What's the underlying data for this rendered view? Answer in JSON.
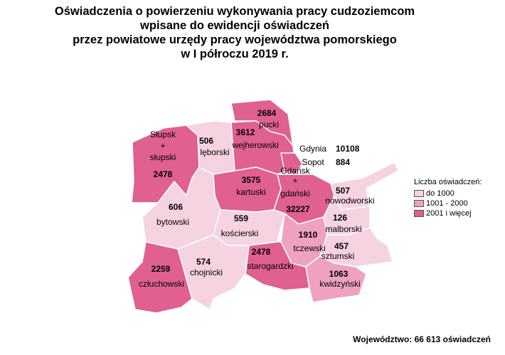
{
  "title_lines": [
    "Oświadczenia o powierzeniu wykonywania pracy cudzoziemcom",
    "wpisane do ewidencji oświadczeń",
    "przez powiatowe urzędy pracy województwa pomorskiego",
    "w I półroczu 2019 r."
  ],
  "colors": {
    "low": "#f5d3e1",
    "mid": "#eea2c0",
    "high": "#e06090",
    "border": "#ffffff",
    "outline": "#aaaaaa"
  },
  "legend": {
    "title": "Liczba oświadczeń:",
    "items": [
      {
        "label": "do 1000",
        "color": "#f5d3e1"
      },
      {
        "label": "1001 - 2000",
        "color": "#eea2c0"
      },
      {
        "label": "2001 i więcej",
        "color": "#e06090"
      }
    ]
  },
  "footer": "Województwo: 66 613 oświadczeń",
  "counties": [
    {
      "id": "slupski",
      "name_lines": [
        "Słupsk",
        "+",
        "słupski"
      ],
      "value": "2478",
      "category": "high"
    },
    {
      "id": "leborski",
      "name_lines": [
        "lęborski"
      ],
      "value": "506",
      "category": "low"
    },
    {
      "id": "pucki",
      "name_lines": [
        "pucki"
      ],
      "value": "2684",
      "category": "high"
    },
    {
      "id": "wejherowski",
      "name_lines": [
        "wejherowski"
      ],
      "value": "3612",
      "category": "high"
    },
    {
      "id": "gdynia-sopot",
      "name_lines": [
        "Gdynia",
        "Sopot"
      ],
      "values": [
        "10108",
        "884"
      ],
      "category": "high"
    },
    {
      "id": "kartuski",
      "name_lines": [
        "kartuski"
      ],
      "value": "3575",
      "category": "high"
    },
    {
      "id": "gdanski",
      "name_lines": [
        "Gdańsk",
        "+",
        "gdański"
      ],
      "value": "32227",
      "category": "high"
    },
    {
      "id": "nowodworski",
      "name_lines": [
        "nowodworski"
      ],
      "value": "507",
      "category": "low"
    },
    {
      "id": "bytowski",
      "name_lines": [
        "bytowski"
      ],
      "value": "606",
      "category": "low"
    },
    {
      "id": "koscierski",
      "name_lines": [
        "kościerski"
      ],
      "value": "559",
      "category": "low"
    },
    {
      "id": "malborski",
      "name_lines": [
        "malborski"
      ],
      "value": "126",
      "category": "low"
    },
    {
      "id": "tczewski",
      "name_lines": [
        "tczewski"
      ],
      "value": "1910",
      "category": "mid"
    },
    {
      "id": "sztumski",
      "name_lines": [
        "sztumski"
      ],
      "value": "457",
      "category": "low"
    },
    {
      "id": "starogardzki",
      "name_lines": [
        "starogardzki"
      ],
      "value": "2478",
      "category": "high"
    },
    {
      "id": "chojnicki",
      "name_lines": [
        "chojnicki"
      ],
      "value": "574",
      "category": "low"
    },
    {
      "id": "czluchowski",
      "name_lines": [
        "człuchowski"
      ],
      "value": "2259",
      "category": "high"
    },
    {
      "id": "kwidzynski",
      "name_lines": [
        "kwidzyński"
      ],
      "value": "1063",
      "category": "mid"
    }
  ]
}
